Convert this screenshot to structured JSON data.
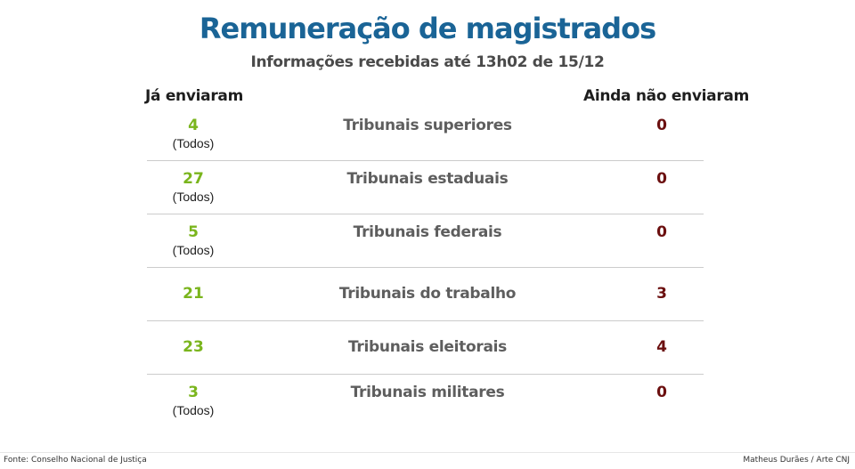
{
  "title": "Remuneração de magistrados",
  "subtitle": "Informações recebidas até 13h02 de 15/12",
  "columns": {
    "sent": "Já enviaram",
    "pending": "Ainda não enviaram"
  },
  "rows": [
    {
      "court": "Tribunais superiores",
      "sent": "4",
      "note": "(Todos)",
      "pending": "0"
    },
    {
      "court": "Tribunais estaduais",
      "sent": "27",
      "note": "(Todos)",
      "pending": "0"
    },
    {
      "court": "Tribunais federais",
      "sent": "5",
      "note": "(Todos)",
      "pending": "0"
    },
    {
      "court": "Tribunais do trabalho",
      "sent": "21",
      "note": "",
      "pending": "3"
    },
    {
      "court": "Tribunais eleitorais",
      "sent": "23",
      "note": "",
      "pending": "4"
    },
    {
      "court": "Tribunais militares",
      "sent": "3",
      "note": "(Todos)",
      "pending": "0"
    }
  ],
  "footer": {
    "source": "Fonte: Conselho Nacional de Justiça",
    "credit": "Matheus Durães / Arte CNJ"
  },
  "colors": {
    "title": "#1a6496",
    "sent": "#7ab51d",
    "pending": "#6b0f0f",
    "court": "#5e5e5e"
  }
}
